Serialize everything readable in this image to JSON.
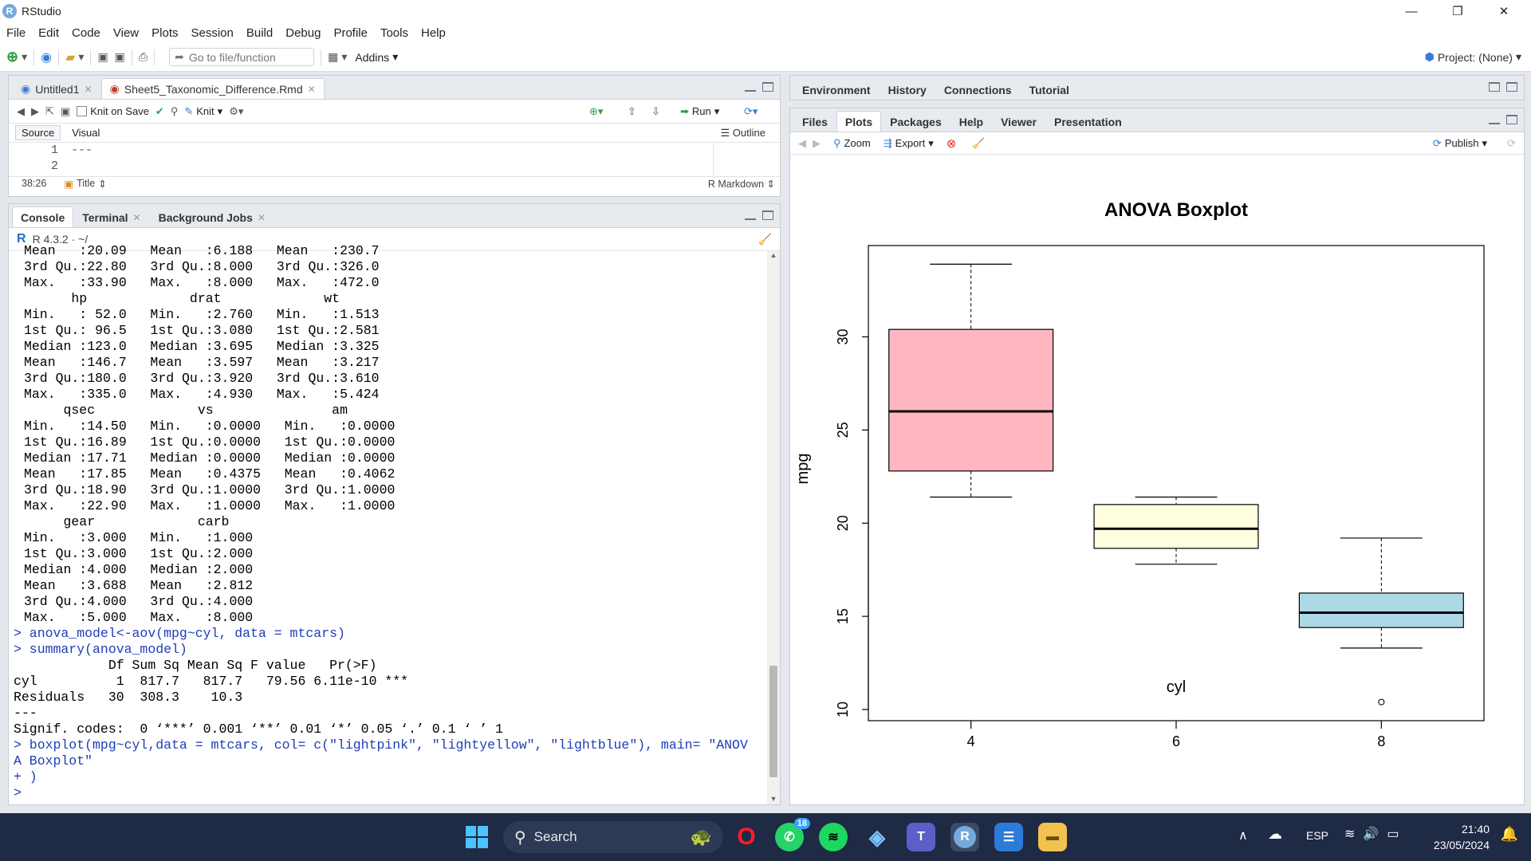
{
  "window": {
    "title": "RStudio",
    "minimize_glyph": "—",
    "maximize_glyph": "❐",
    "close_glyph": "✕"
  },
  "menu": [
    "File",
    "Edit",
    "Code",
    "View",
    "Plots",
    "Session",
    "Build",
    "Debug",
    "Profile",
    "Tools",
    "Help"
  ],
  "toolbar": {
    "goto_placeholder": "Go to file/function",
    "addins": "Addins",
    "project": "Project: (None)"
  },
  "source": {
    "tabs": [
      {
        "label": "Untitled1"
      },
      {
        "label": "Sheet5_Taxonomic_Difference.Rmd"
      }
    ],
    "knit_on_save": "Knit on Save",
    "knit": "Knit",
    "run": "Run",
    "outline": "Outline",
    "source_tab": "Source",
    "visual_tab": "Visual",
    "lines": [
      {
        "num": "1",
        "text": "---"
      },
      {
        "num": "2",
        "text": ""
      }
    ],
    "cursor_pos": "38:26",
    "section": "Title",
    "mode": "R Markdown"
  },
  "console": {
    "tabs": [
      "Console",
      "Terminal",
      "Background Jobs"
    ],
    "r_version": "R 4.3.2 · ~/",
    "lines": [
      "Mean   :20.09   Mean   :6.188   Mean   :230.7",
      "3rd Qu.:22.80   3rd Qu.:8.000   3rd Qu.:326.0",
      "Max.   :33.90   Max.   :8.000   Max.   :472.0",
      "      hp             drat             wt       ",
      "Min.   : 52.0   Min.   :2.760   Min.   :1.513  ",
      "1st Qu.: 96.5   1st Qu.:3.080   1st Qu.:2.581  ",
      "Median :123.0   Median :3.695   Median :3.325  ",
      "Mean   :146.7   Mean   :3.597   Mean   :3.217  ",
      "3rd Qu.:180.0   3rd Qu.:3.920   3rd Qu.:3.610  ",
      "Max.   :335.0   Max.   :4.930   Max.   :5.424  ",
      "     qsec             vs               am        ",
      "Min.   :14.50   Min.   :0.0000   Min.   :0.0000  ",
      "1st Qu.:16.89   1st Qu.:0.0000   1st Qu.:0.0000  ",
      "Median :17.71   Median :0.0000   Median :0.0000  ",
      "Mean   :17.85   Mean   :0.4375   Mean   :0.4062  ",
      "3rd Qu.:18.90   3rd Qu.:1.0000   3rd Qu.:1.0000  ",
      "Max.   :22.90   Max.   :1.0000   Max.   :1.0000  ",
      "     gear             carb      ",
      "Min.   :3.000   Min.   :1.000  ",
      "1st Qu.:3.000   1st Qu.:2.000  ",
      "Median :4.000   Median :2.000  ",
      "Mean   :3.688   Mean   :2.812  ",
      "3rd Qu.:4.000   3rd Qu.:4.000  ",
      "Max.   :5.000   Max.   :8.000  "
    ],
    "cmd1": "> anova_model<-aov(mpg~cyl, data = mtcars)",
    "cmd2": "> summary(anova_model)",
    "anova": [
      "            Df Sum Sq Mean Sq F value   Pr(>F)    ",
      "cyl          1  817.7   817.7   79.56 6.11e-10 ***",
      "Residuals   30  308.3    10.3                     ",
      "---",
      "Signif. codes:  0 ‘***’ 0.001 ‘**’ 0.01 ‘*’ 0.05 ‘.’ 0.1 ‘ ’ 1"
    ],
    "cmd3a": "> boxplot(mpg~cyl,data = mtcars, col= c(\"lightpink\", \"lightyellow\", \"lightblue\"), main= \"ANOV",
    "cmd3b": "A Boxplot\"",
    "cmd3c": "+ )",
    "prompt": ">"
  },
  "env_tabs": [
    "Environment",
    "History",
    "Connections",
    "Tutorial"
  ],
  "files_tabs": [
    "Files",
    "Plots",
    "Packages",
    "Help",
    "Viewer",
    "Presentation"
  ],
  "plot_toolbar": {
    "zoom": "Zoom",
    "export": "Export",
    "publish": "Publish"
  },
  "chart_data": {
    "type": "boxplot",
    "title": "ANOVA Boxplot",
    "xlabel": "cyl",
    "ylabel": "mpg",
    "categories": [
      "4",
      "6",
      "8"
    ],
    "colors": [
      "#ffb6c1",
      "#ffffe0",
      "#add8e6"
    ],
    "boxes": [
      {
        "min": 21.4,
        "q1": 22.8,
        "median": 26.0,
        "q3": 30.4,
        "max": 33.9,
        "outliers": []
      },
      {
        "min": 17.8,
        "q1": 18.65,
        "median": 19.7,
        "q3": 21.0,
        "max": 21.4,
        "outliers": []
      },
      {
        "min": 13.3,
        "q1": 14.4,
        "median": 15.2,
        "q3": 16.25,
        "max": 19.2,
        "outliers": [
          10.4
        ]
      }
    ],
    "yticks": [
      10,
      15,
      20,
      25,
      30
    ],
    "ylim": [
      9.4,
      34.9
    ]
  },
  "taskbar": {
    "search": "Search",
    "badge": "18",
    "lang": "ESP",
    "time": "21:40",
    "date": "23/05/2024"
  }
}
